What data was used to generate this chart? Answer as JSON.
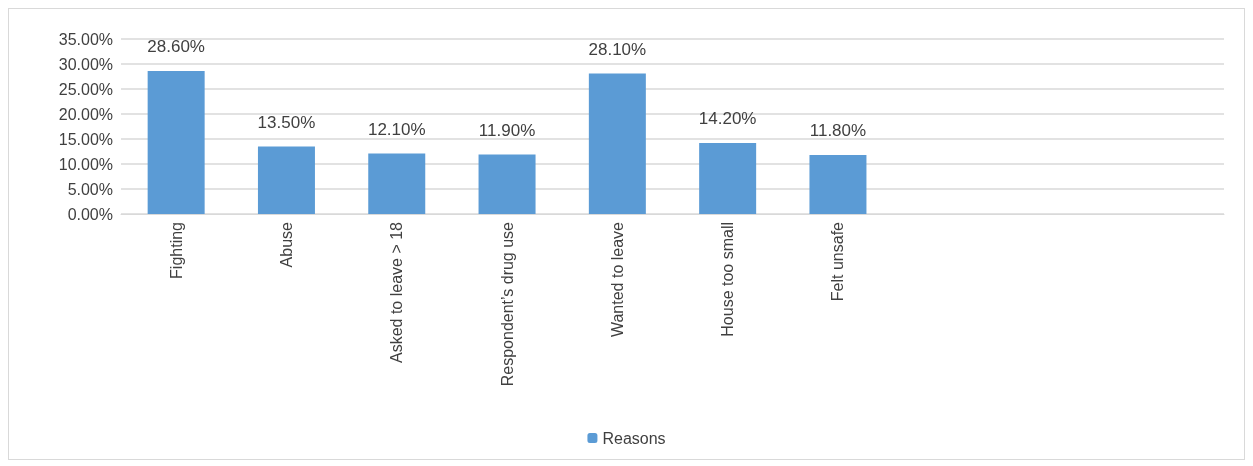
{
  "chart_data": {
    "type": "bar",
    "categories": [
      "Fighting",
      "Abuse",
      "Asked to leave > 18",
      "Respondent’s drug use",
      "Wanted to leave",
      "House too small",
      "Felt unsafe",
      null,
      null,
      null
    ],
    "series": [
      {
        "name": "Reasons",
        "color": "#5b9bd5",
        "values": [
          28.6,
          13.5,
          12.1,
          11.9,
          28.1,
          14.2,
          11.8,
          null,
          null,
          null
        ],
        "value_labels": [
          "28.60%",
          "13.50%",
          "12.10%",
          "11.90%",
          "28.10%",
          "14.20%",
          "11.80%",
          null,
          null,
          null
        ]
      }
    ],
    "ylim": [
      0,
      35
    ],
    "yticks": [
      {
        "value": 0,
        "label": "0.00%"
      },
      {
        "value": 5,
        "label": "5.00%"
      },
      {
        "value": 10,
        "label": "10.00%"
      },
      {
        "value": 15,
        "label": "15.00%"
      },
      {
        "value": 20,
        "label": "20.00%"
      },
      {
        "value": 25,
        "label": "25.00%"
      },
      {
        "value": 30,
        "label": "30.00%"
      },
      {
        "value": 35,
        "label": "35.00%"
      }
    ],
    "grid": true,
    "legend": "bottom"
  }
}
